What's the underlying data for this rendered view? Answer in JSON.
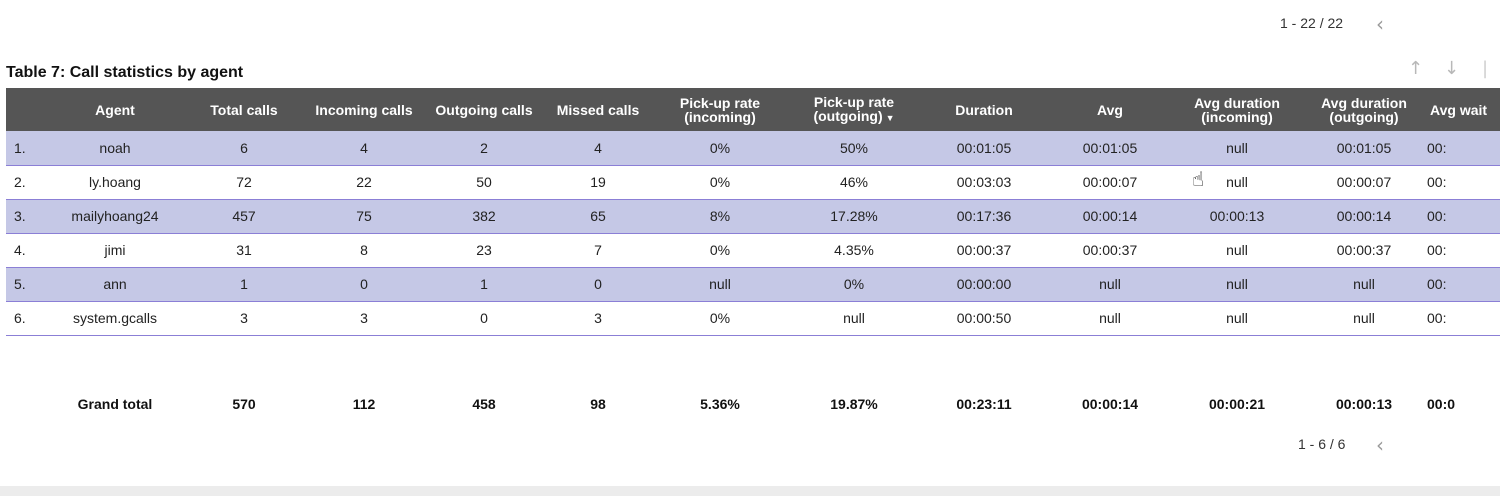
{
  "top_pager": {
    "range": "1 - 22 / 22",
    "prev_icon": "chevron-left-icon"
  },
  "table_title": "Table 7: Call statistics by agent",
  "columns": [
    "",
    "Agent",
    "Total calls",
    "Incoming calls",
    "Outgoing calls",
    "Missed calls",
    "Pick-up rate (incoming)",
    "Pick-up rate (outgoing)",
    "Duration",
    "Avg",
    "Avg duration (incoming)",
    "Avg duration (outgoing)",
    "Avg wait"
  ],
  "sorted_column": "Pick-up rate (outgoing)",
  "rows": [
    [
      "1.",
      "noah",
      "6",
      "4",
      "2",
      "4",
      "0%",
      "50%",
      "00:01:05",
      "00:01:05",
      "null",
      "00:01:05",
      "00:"
    ],
    [
      "2.",
      "ly.hoang",
      "72",
      "22",
      "50",
      "19",
      "0%",
      "46%",
      "00:03:03",
      "00:00:07",
      "null",
      "00:00:07",
      "00:"
    ],
    [
      "3.",
      "mailyhoang24",
      "457",
      "75",
      "382",
      "65",
      "8%",
      "17.28%",
      "00:17:36",
      "00:00:14",
      "00:00:13",
      "00:00:14",
      "00:"
    ],
    [
      "4.",
      "jimi",
      "31",
      "8",
      "23",
      "7",
      "0%",
      "4.35%",
      "00:00:37",
      "00:00:37",
      "null",
      "00:00:37",
      "00:"
    ],
    [
      "5.",
      "ann",
      "1",
      "0",
      "1",
      "0",
      "null",
      "0%",
      "00:00:00",
      "null",
      "null",
      "null",
      "00:"
    ],
    [
      "6.",
      "system.gcalls",
      "3",
      "3",
      "0",
      "3",
      "0%",
      "null",
      "00:00:50",
      "null",
      "null",
      "null",
      "00:"
    ]
  ],
  "grand_total": [
    "",
    "Grand total",
    "570",
    "112",
    "458",
    "98",
    "5.36%",
    "19.87%",
    "00:23:11",
    "00:00:14",
    "00:00:21",
    "00:00:13",
    "00:0"
  ],
  "bottom_pager": {
    "range": "1 - 6 / 6",
    "prev_icon": "chevron-left-icon"
  },
  "colors": {
    "header_bg": "#555555",
    "row_highlight": "#c5c8e6",
    "row_border": "#8b7fd6"
  }
}
